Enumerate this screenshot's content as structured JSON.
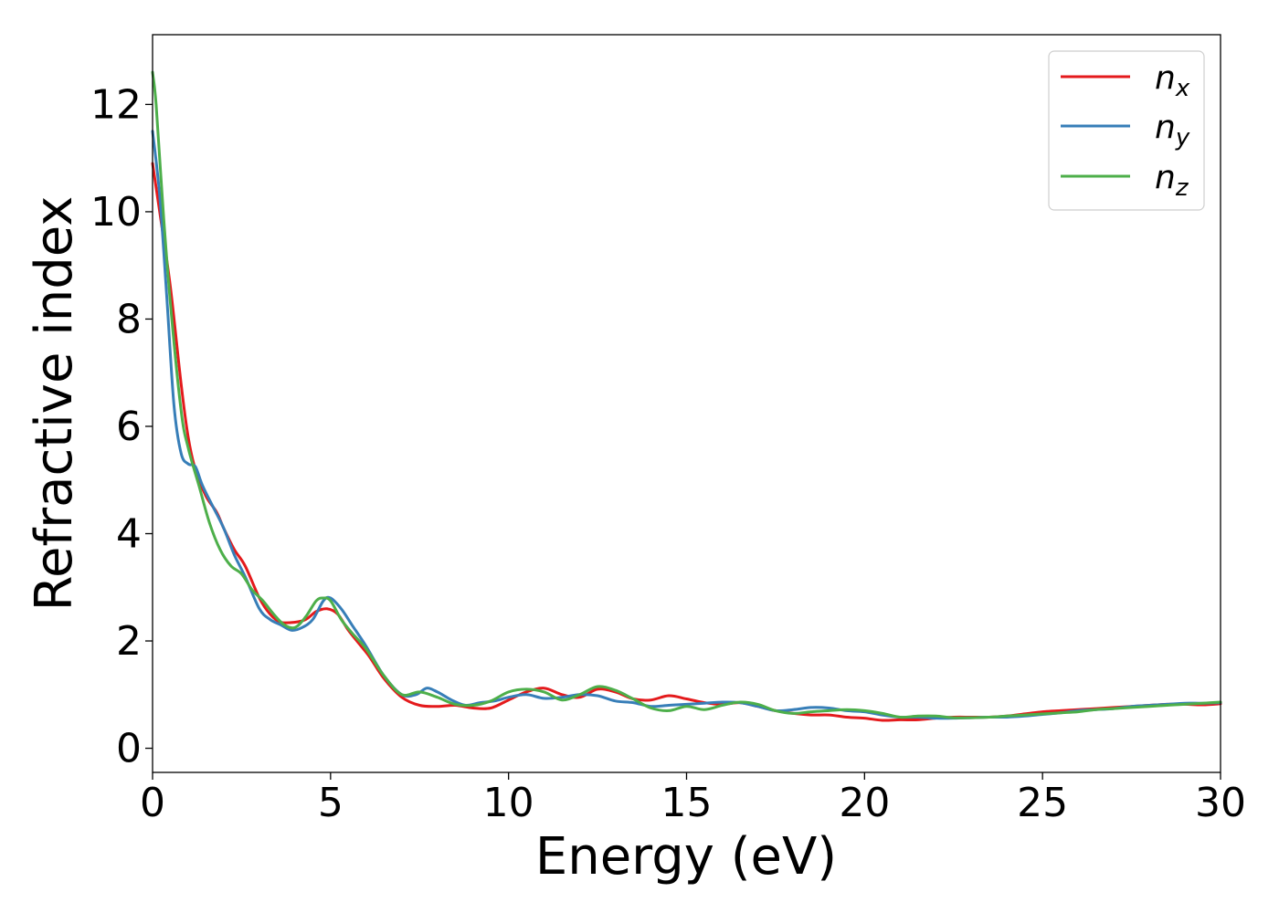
{
  "chart_data": {
    "type": "line",
    "title": "",
    "xlabel": "Energy (eV)",
    "ylabel": "Refractive index",
    "xlim": [
      0,
      30
    ],
    "ylim": [
      -0.45,
      13.3
    ],
    "xticks": [
      0,
      5,
      10,
      15,
      20,
      25,
      30
    ],
    "yticks": [
      0,
      2,
      4,
      6,
      8,
      10,
      12
    ],
    "grid": false,
    "legend_position": "top-right",
    "series": [
      {
        "name": "n",
        "subscript": "x",
        "color": "#e41a1c",
        "x": [
          0,
          0.2,
          0.5,
          0.8,
          1.0,
          1.2,
          1.5,
          1.8,
          2.0,
          2.3,
          2.6,
          3.0,
          3.3,
          3.6,
          4.0,
          4.3,
          4.6,
          4.9,
          5.2,
          5.5,
          5.8,
          6.1,
          6.5,
          7.0,
          7.5,
          8.0,
          8.5,
          9.0,
          9.5,
          10.0,
          10.5,
          11.0,
          11.5,
          12.0,
          12.5,
          13.0,
          13.5,
          14.0,
          14.5,
          15.0,
          15.5,
          16.0,
          16.5,
          17.0,
          17.5,
          18.0,
          18.5,
          19.0,
          19.5,
          20.0,
          20.5,
          21.0,
          21.5,
          22.0,
          22.5,
          23.0,
          23.5,
          24.0,
          24.5,
          25.0,
          25.5,
          26.0,
          26.5,
          27.0,
          27.5,
          28.0,
          28.5,
          29.0,
          29.5,
          30.0
        ],
        "y": [
          10.9,
          10.0,
          8.6,
          6.8,
          5.8,
          5.2,
          4.7,
          4.4,
          4.1,
          3.7,
          3.4,
          2.8,
          2.5,
          2.35,
          2.35,
          2.4,
          2.55,
          2.6,
          2.5,
          2.2,
          1.95,
          1.7,
          1.3,
          0.95,
          0.8,
          0.78,
          0.8,
          0.75,
          0.75,
          0.9,
          1.05,
          1.12,
          1.0,
          0.95,
          1.1,
          1.05,
          0.92,
          0.9,
          0.98,
          0.92,
          0.85,
          0.82,
          0.85,
          0.78,
          0.7,
          0.65,
          0.62,
          0.62,
          0.58,
          0.56,
          0.52,
          0.53,
          0.53,
          0.56,
          0.58,
          0.58,
          0.58,
          0.6,
          0.64,
          0.68,
          0.7,
          0.72,
          0.74,
          0.76,
          0.78,
          0.8,
          0.82,
          0.82,
          0.81,
          0.83
        ]
      },
      {
        "name": "n",
        "subscript": "y",
        "color": "#377eb8",
        "x": [
          0,
          0.2,
          0.4,
          0.6,
          0.8,
          1.0,
          1.2,
          1.4,
          1.7,
          2.0,
          2.3,
          2.6,
          3.0,
          3.3,
          3.6,
          3.9,
          4.2,
          4.5,
          4.8,
          5.0,
          5.3,
          5.6,
          6.0,
          6.5,
          7.0,
          7.4,
          7.7,
          8.0,
          8.4,
          8.8,
          9.2,
          9.6,
          10.0,
          10.5,
          11.0,
          11.5,
          12.0,
          12.5,
          13.0,
          13.5,
          14.0,
          14.5,
          15.0,
          15.5,
          16.0,
          16.5,
          17.0,
          17.5,
          18.0,
          18.5,
          19.0,
          19.5,
          20.0,
          20.5,
          21.0,
          21.5,
          22.0,
          22.5,
          23.0,
          23.5,
          24.0,
          24.5,
          25.0,
          25.5,
          26.0,
          26.5,
          27.0,
          27.5,
          28.0,
          28.5,
          29.0,
          29.5,
          30.0
        ],
        "y": [
          11.5,
          10.3,
          8.4,
          6.4,
          5.5,
          5.3,
          5.25,
          4.9,
          4.5,
          4.1,
          3.6,
          3.2,
          2.6,
          2.4,
          2.3,
          2.2,
          2.25,
          2.4,
          2.75,
          2.8,
          2.6,
          2.3,
          1.9,
          1.35,
          1.0,
          1.0,
          1.12,
          1.05,
          0.9,
          0.8,
          0.85,
          0.88,
          0.95,
          1.0,
          0.93,
          0.95,
          1.0,
          0.98,
          0.88,
          0.85,
          0.78,
          0.8,
          0.82,
          0.84,
          0.86,
          0.85,
          0.78,
          0.7,
          0.72,
          0.76,
          0.75,
          0.7,
          0.68,
          0.62,
          0.58,
          0.58,
          0.56,
          0.56,
          0.57,
          0.58,
          0.58,
          0.6,
          0.63,
          0.66,
          0.7,
          0.72,
          0.74,
          0.78,
          0.8,
          0.82,
          0.84,
          0.84,
          0.85
        ]
      },
      {
        "name": "n",
        "subscript": "z",
        "color": "#4daf4a",
        "x": [
          0,
          0.1,
          0.3,
          0.5,
          0.8,
          1.0,
          1.3,
          1.6,
          1.9,
          2.2,
          2.5,
          2.8,
          3.1,
          3.4,
          3.7,
          4.0,
          4.3,
          4.6,
          4.8,
          5.0,
          5.3,
          5.6,
          6.0,
          6.5,
          7.0,
          7.5,
          8.0,
          8.5,
          9.0,
          9.5,
          10.0,
          10.5,
          11.0,
          11.5,
          12.0,
          12.5,
          13.0,
          13.5,
          14.0,
          14.5,
          15.0,
          15.5,
          16.0,
          16.5,
          17.0,
          17.5,
          18.0,
          18.5,
          19.0,
          19.5,
          20.0,
          20.5,
          21.0,
          21.5,
          22.0,
          22.5,
          23.0,
          23.5,
          24.0,
          24.5,
          25.0,
          25.5,
          26.0,
          26.5,
          27.0,
          27.5,
          28.0,
          28.5,
          29.0,
          29.5,
          30.0
        ],
        "y": [
          12.6,
          12.0,
          10.0,
          8.3,
          6.3,
          5.6,
          4.9,
          4.2,
          3.7,
          3.4,
          3.25,
          2.95,
          2.75,
          2.5,
          2.3,
          2.25,
          2.45,
          2.75,
          2.8,
          2.75,
          2.4,
          2.15,
          1.85,
          1.35,
          1.0,
          1.05,
          0.95,
          0.82,
          0.8,
          0.88,
          1.05,
          1.1,
          1.05,
          0.9,
          1.0,
          1.15,
          1.08,
          0.92,
          0.75,
          0.7,
          0.78,
          0.72,
          0.8,
          0.86,
          0.82,
          0.7,
          0.65,
          0.68,
          0.7,
          0.72,
          0.7,
          0.65,
          0.58,
          0.6,
          0.6,
          0.57,
          0.57,
          0.58,
          0.6,
          0.62,
          0.64,
          0.66,
          0.68,
          0.72,
          0.74,
          0.76,
          0.78,
          0.8,
          0.82,
          0.84,
          0.86
        ]
      }
    ]
  }
}
